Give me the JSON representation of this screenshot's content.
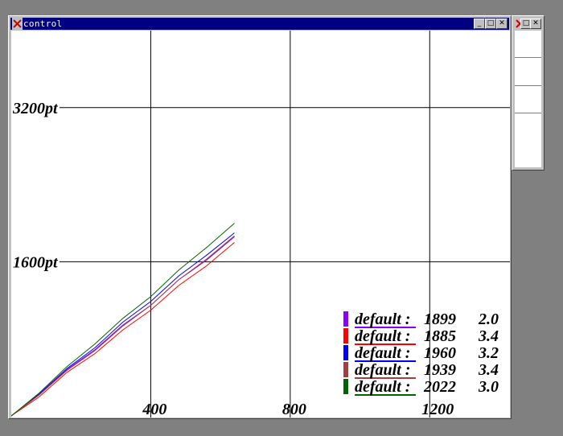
{
  "window": {
    "title": "control"
  },
  "side_window": {
    "items": [
      "",
      "",
      "",
      ""
    ]
  },
  "colors": {
    "titlebar": "#000080",
    "grid": "#000000",
    "purple": "#8800ff",
    "red": "#ff0000",
    "blue": "#0000ff",
    "brown": "#a04040",
    "green": "#006400"
  },
  "icons": [
    "x-logo-icon",
    "minimize-icon",
    "maximize-icon",
    "close-icon"
  ],
  "chart_data": {
    "type": "line",
    "xlabel": "",
    "ylabel": "",
    "y_unit": "pt",
    "xlim": [
      0,
      1430
    ],
    "ylim": [
      0,
      4000
    ],
    "x_ticks": [
      400,
      800,
      1200
    ],
    "x_tick_labels": [
      "400",
      "800",
      "1200"
    ],
    "y_ticks": [
      1600,
      3200
    ],
    "y_tick_labels": [
      "1600pt",
      "3200pt"
    ],
    "grid": true,
    "legend_position": "bottom-right",
    "legend": [
      {
        "label": "default :",
        "value": "1899",
        "rate": "2.0",
        "color": "#8800ff"
      },
      {
        "label": "default :",
        "value": "1885",
        "rate": "3.4",
        "color": "#ff0000"
      },
      {
        "label": "default :",
        "value": "1960",
        "rate": "3.2",
        "color": "#0000ff"
      },
      {
        "label": "default :",
        "value": "1939",
        "rate": "3.4",
        "color": "#a04040"
      },
      {
        "label": "default :",
        "value": "2022",
        "rate": "3.0",
        "color": "#006400"
      }
    ],
    "series": [
      {
        "color": "#8800ff",
        "x": [
          0,
          80,
          160,
          240,
          320,
          400,
          480,
          560,
          640
        ],
        "y": [
          0,
          230,
          470,
          700,
          930,
          1160,
          1400,
          1630,
          1860
        ]
      },
      {
        "color": "#ff0000",
        "x": [
          0,
          80,
          160,
          240,
          320,
          400,
          480,
          560,
          640
        ],
        "y": [
          0,
          210,
          440,
          660,
          880,
          1110,
          1340,
          1570,
          1800
        ]
      },
      {
        "color": "#0000ff",
        "x": [
          0,
          80,
          160,
          240,
          320,
          400,
          480,
          560,
          640
        ],
        "y": [
          0,
          240,
          480,
          720,
          960,
          1200,
          1440,
          1680,
          1900
        ]
      },
      {
        "color": "#a04040",
        "x": [
          0,
          80,
          160,
          240,
          320,
          400,
          480,
          560,
          640
        ],
        "y": [
          0,
          230,
          460,
          690,
          920,
          1160,
          1400,
          1640,
          1870
        ]
      },
      {
        "color": "#006400",
        "x": [
          0,
          80,
          160,
          240,
          320,
          400,
          480,
          560,
          640
        ],
        "y": [
          0,
          250,
          500,
          760,
          1000,
          1250,
          1500,
          1760,
          2000
        ]
      }
    ]
  }
}
